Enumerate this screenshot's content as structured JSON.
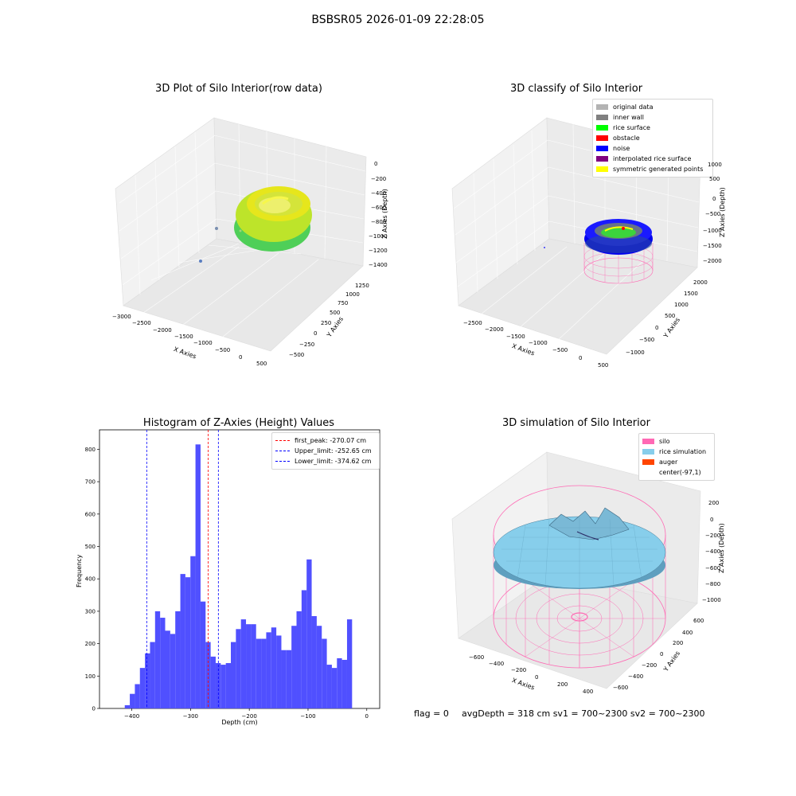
{
  "suptitle": "BSBSR05 2026-01-09 22:28:05",
  "panel1": {
    "title": "3D Plot of Silo Interior(row data)",
    "x_label": "X Axies",
    "y_label": "Y Axies",
    "z_label": "Z Axies (Depth)",
    "x_ticks": [
      "−3000",
      "−2500",
      "−2000",
      "−1500",
      "−1000",
      "−500",
      "0",
      "500"
    ],
    "y_ticks": [
      "−500",
      "−250",
      "0",
      "250",
      "500",
      "750",
      "1000",
      "1250"
    ],
    "z_ticks": [
      "0",
      "−200",
      "−400",
      "−600",
      "−800",
      "−1000",
      "−1200",
      "−1400"
    ]
  },
  "panel2": {
    "title": "3D classify of Silo Interior",
    "x_label": "X Axies",
    "y_label": "Y Axies",
    "z_label": "Z Axies (Depth)",
    "x_ticks": [
      "−2500",
      "−2000",
      "−1500",
      "−1000",
      "−500",
      "0",
      "500"
    ],
    "y_ticks": [
      "−1000",
      "−500",
      "0",
      "500",
      "1000",
      "1500",
      "2000"
    ],
    "z_ticks": [
      "1000",
      "500",
      "0",
      "−500",
      "−1000",
      "−1500",
      "−2000"
    ],
    "legend": [
      {
        "label": "original data",
        "color": "#b3b3b3"
      },
      {
        "label": "inner wall",
        "color": "#808080"
      },
      {
        "label": "rice surface",
        "color": "#00ff00"
      },
      {
        "label": "obstacle",
        "color": "#ff0000"
      },
      {
        "label": "noise",
        "color": "#0000ff"
      },
      {
        "label": "interpolated rice surface",
        "color": "#800080"
      },
      {
        "label": "symmetric generated points",
        "color": "#ffff00"
      }
    ]
  },
  "panel3": {
    "title": "3D simulation of Silo Interior",
    "x_label": "X Axies",
    "y_label": "Y Axies",
    "z_label": "Z Axies (Depth)",
    "x_ticks": [
      "−600",
      "−400",
      "−200",
      "0",
      "200",
      "400"
    ],
    "y_ticks": [
      "−600",
      "−400",
      "−200",
      "0",
      "200",
      "400",
      "600"
    ],
    "z_ticks": [
      "200",
      "0",
      "−200",
      "−400",
      "−600",
      "−800",
      "−1000"
    ],
    "legend": [
      {
        "label": "silo",
        "color": "#ff69b4"
      },
      {
        "label": "rice simulation",
        "color": "#87ceeb"
      },
      {
        "label": "auger",
        "color": "#ff4500"
      },
      {
        "label": "center(-97,1)",
        "color": "#ffffff"
      }
    ]
  },
  "footer": {
    "flag": "flag = 0",
    "summary": "avgDepth = 318 cm  sv1 = 700~2300  sv2 = 700~2300"
  },
  "colors": {
    "bars": "#5050ff",
    "peak": "#ff0000",
    "limit": "#0000ff"
  },
  "chart_data": {
    "type": "bar",
    "title": "Histogram of Z-Axies (Height) Values",
    "xlabel": "Depth (cm)",
    "ylabel": "Frequency",
    "xlim": [
      -455,
      22
    ],
    "ylim": [
      0,
      860
    ],
    "x_ticks": [
      -400,
      -300,
      -200,
      -100,
      0
    ],
    "y_ticks": [
      0,
      100,
      200,
      300,
      400,
      500,
      600,
      700,
      800
    ],
    "bin_start": -412,
    "bin_width": 8.6,
    "values": [
      10,
      45,
      75,
      125,
      170,
      205,
      300,
      280,
      240,
      230,
      300,
      415,
      405,
      470,
      815,
      330,
      205,
      160,
      140,
      135,
      140,
      205,
      245,
      275,
      260,
      260,
      215,
      215,
      235,
      250,
      225,
      180,
      180,
      255,
      300,
      365,
      460,
      285,
      255,
      215,
      135,
      125,
      155,
      150,
      275
    ],
    "lines": [
      {
        "name": "first_peak: -270.07 cm",
        "value": -270.07,
        "color": "#ff0000"
      },
      {
        "name": "Upper_limit: -252.65 cm",
        "value": -252.65,
        "color": "#0000ff"
      },
      {
        "name": "Lower_limit: -374.62 cm",
        "value": -374.62,
        "color": "#0000ff"
      }
    ]
  }
}
